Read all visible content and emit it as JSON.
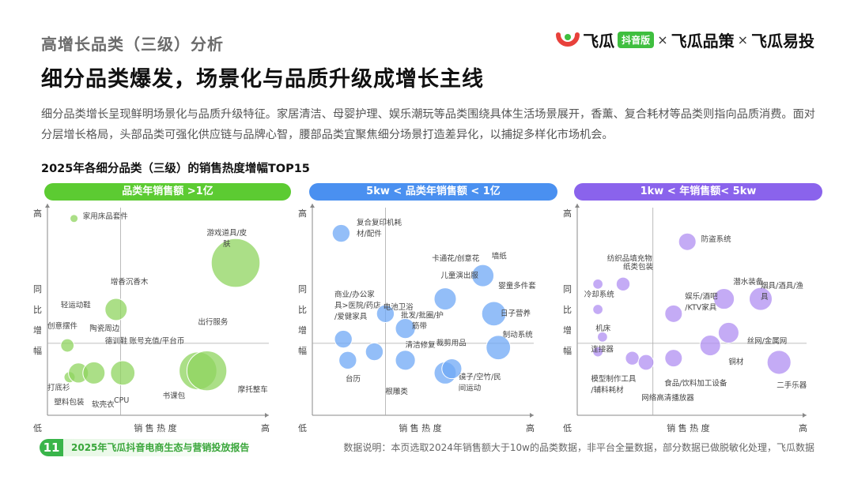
{
  "header": {
    "section_title": "高增长品类（三级）分析",
    "main_title": "细分品类爆发，场景化与品质升级成增长主线",
    "description": "细分品类增长呈现鲜明场景化与品质升级特征。家居清洁、母婴护理、娱乐潮玩等品类围绕具体生活场景展开，香薰、复合耗材等品类则指向品质消费。面对分层增长格局，头部品类可强化供应链与品牌心智，腰部品类宜聚焦细分场景打造差异化，以捕捉多样化市场机会。",
    "chart_heading": "2025年各细分品类（三级）的销售热度增幅TOP15"
  },
  "logo": {
    "brand1": "飞瓜",
    "badge": "抖音版",
    "times": "×",
    "brand2": "飞瓜品策",
    "brand3": "飞瓜易投"
  },
  "footer": {
    "page_number": "11",
    "report_title": "2025年飞瓜抖音电商生态与营销投放报告",
    "note": "数据说明：本页选取2024年销售额大于10w的品类数据，非平台全量数据，部分数据已做脱敏化处理，飞瓜数据"
  },
  "chart_data": [
    {
      "type": "scatter",
      "title": "品类年销售额 >1亿",
      "color": "#8fd45f",
      "pill_color": "#5ccb32",
      "xlabel": "销 售 热 度",
      "ylabel": "同 比 增 幅",
      "x_low": "低",
      "x_high": "高",
      "y_high": "高",
      "points": [
        {
          "label": "家用床品套件",
          "x": 0.12,
          "y": 0.93,
          "r": 0.018,
          "lx": 0.16,
          "ly": 0.93,
          "anchor": "start"
        },
        {
          "label": "游戏道具/皮",
          "label2": "肤",
          "x": 0.85,
          "y": 0.72,
          "r": 0.11,
          "lx": 0.81,
          "ly": 0.85,
          "anchor": "middle"
        },
        {
          "label": "增香沉香木",
          "x": 0.31,
          "y": 0.5,
          "r": 0.05,
          "lx": 0.37,
          "ly": 0.62,
          "anchor": "middle"
        },
        {
          "label": "轻运动鞋",
          "x": 0.08,
          "y": 0.52,
          "r": 0.0,
          "lx": 0.06,
          "ly": 0.51,
          "anchor": "start"
        },
        {
          "label": "创意摆件",
          "x": 0.09,
          "y": 0.33,
          "r": 0.03,
          "lx": 0.0,
          "ly": 0.41,
          "anchor": "start"
        },
        {
          "label": "陶瓷周边",
          "x": 0.18,
          "y": 0.3,
          "r": 0.0,
          "lx": 0.19,
          "ly": 0.4,
          "anchor": "start"
        },
        {
          "label": "德训鞋",
          "x": 0.24,
          "y": 0.27,
          "r": 0.0,
          "lx": 0.26,
          "ly": 0.34,
          "anchor": "start"
        },
        {
          "label": "账号充值/平台币",
          "x": 0.46,
          "y": 0.28,
          "r": 0.0,
          "lx": 0.37,
          "ly": 0.34,
          "anchor": "start"
        },
        {
          "label": "出行服务",
          "x": 0.63,
          "y": 0.39,
          "r": 0.0,
          "lx": 0.68,
          "ly": 0.43,
          "anchor": "start"
        },
        {
          "label": "打底衫",
          "x": 0.1,
          "y": 0.18,
          "r": 0.025,
          "lx": 0.0,
          "ly": 0.12,
          "anchor": "start"
        },
        {
          "label": "塑料包装",
          "x": 0.14,
          "y": 0.2,
          "r": 0.045,
          "lx": 0.03,
          "ly": 0.05,
          "anchor": "start"
        },
        {
          "label": "软壳衣",
          "x": 0.21,
          "y": 0.2,
          "r": 0.05,
          "lx": 0.2,
          "ly": 0.04,
          "anchor": "start"
        },
        {
          "label": "CPU",
          "x": 0.34,
          "y": 0.2,
          "r": 0.055,
          "lx": 0.3,
          "ly": 0.06,
          "anchor": "start"
        },
        {
          "label": "书课包",
          "x": 0.68,
          "y": 0.21,
          "r": 0.085,
          "lx": 0.52,
          "ly": 0.08,
          "anchor": "start"
        },
        {
          "label": "摩托整车",
          "x": 0.72,
          "y": 0.21,
          "r": 0.09,
          "lx": 0.86,
          "ly": 0.11,
          "anchor": "start"
        }
      ]
    },
    {
      "type": "scatter",
      "title": "5kw < 品类年销售额 < 1亿",
      "color": "#6fa8f5",
      "pill_color": "#4a90f0",
      "xlabel": "销 售 热 度",
      "ylabel": "同 比 增 幅",
      "x_low": "低",
      "x_high": "高",
      "y_high": "高",
      "points": [
        {
          "label": "复合复印机耗",
          "label2": "材/配件",
          "x": 0.13,
          "y": 0.86,
          "r": 0.04,
          "lx": 0.2,
          "ly": 0.9,
          "anchor": "start"
        },
        {
          "label": "卡通花/创意花",
          "x": 0.52,
          "y": 0.56,
          "r": 0.0,
          "lx": 0.54,
          "ly": 0.73,
          "anchor": "start"
        },
        {
          "label": "墙纸",
          "x": 0.77,
          "y": 0.66,
          "r": 0.05,
          "lx": 0.81,
          "ly": 0.74,
          "anchor": "start"
        },
        {
          "label": "儿童演出服",
          "x": 0.6,
          "y": 0.55,
          "r": 0.05,
          "lx": 0.58,
          "ly": 0.65,
          "anchor": "start"
        },
        {
          "label": "婴童多件套",
          "x": 0.83,
          "y": 0.58,
          "r": 0.0,
          "lx": 0.84,
          "ly": 0.6,
          "anchor": "start"
        },
        {
          "label": "商业/办公家",
          "label2": "具>医院/药店",
          "label3": "/爱健家具",
          "x": 0.16,
          "y": 0.49,
          "r": 0.0,
          "lx": 0.1,
          "ly": 0.56,
          "anchor": "start"
        },
        {
          "label": "电池卫浴",
          "x": 0.33,
          "y": 0.48,
          "r": 0.04,
          "lx": 0.32,
          "ly": 0.5,
          "anchor": "start"
        },
        {
          "label": "日子营养",
          "x": 0.82,
          "y": 0.48,
          "r": 0.055,
          "lx": 0.85,
          "ly": 0.47,
          "anchor": "start"
        },
        {
          "label": "批发/批圈/护",
          "x": 0.42,
          "y": 0.41,
          "r": 0.045,
          "lx": 0.4,
          "ly": 0.46,
          "anchor": "start"
        },
        {
          "label": "筋带",
          "x": 0.42,
          "y": 0.4,
          "r": 0.0,
          "lx": 0.45,
          "ly": 0.41,
          "anchor": "start"
        },
        {
          "label": "制动系统",
          "x": 0.84,
          "y": 0.32,
          "r": 0.055,
          "lx": 0.86,
          "ly": 0.37,
          "anchor": "start"
        },
        {
          "label": "清洁修复",
          "x": 0.42,
          "y": 0.26,
          "r": 0.045,
          "lx": 0.42,
          "ly": 0.32,
          "anchor": "start"
        },
        {
          "label": "裁剪用品",
          "x": 0.55,
          "y": 0.27,
          "r": 0.0,
          "lx": 0.56,
          "ly": 0.33,
          "anchor": "start"
        },
        {
          "label": "台历",
          "x": 0.16,
          "y": 0.26,
          "r": 0.04,
          "lx": 0.15,
          "ly": 0.16,
          "anchor": "start"
        },
        {
          "label": "",
          "x": 0.14,
          "y": 0.36,
          "r": 0.04,
          "lx": 0,
          "ly": 0,
          "anchor": "start"
        },
        {
          "label": "",
          "x": 0.28,
          "y": 0.3,
          "r": 0.04,
          "lx": 0,
          "ly": 0,
          "anchor": "start"
        },
        {
          "label": "根雕类",
          "x": 0.42,
          "y": 0.25,
          "r": 0.0,
          "lx": 0.33,
          "ly": 0.1,
          "anchor": "start"
        },
        {
          "label": "镜子/空竹/民",
          "label2": "间运动",
          "x": 0.6,
          "y": 0.2,
          "r": 0.05,
          "lx": 0.66,
          "ly": 0.17,
          "anchor": "start"
        },
        {
          "label": "",
          "x": 0.63,
          "y": 0.22,
          "r": 0.045,
          "lx": 0,
          "ly": 0,
          "anchor": "start"
        }
      ]
    },
    {
      "type": "scatter",
      "title": "1kw < 年销售额< 5kw",
      "color": "#b08ff2",
      "pill_color": "#8a63ec",
      "xlabel": "销 售 热 度",
      "ylabel": "同 比 增 幅",
      "x_low": "低",
      "x_high": "高",
      "y_high": "高",
      "points": [
        {
          "label": "防盗系统",
          "x": 0.48,
          "y": 0.82,
          "r": 0.038,
          "lx": 0.54,
          "ly": 0.82,
          "anchor": "start"
        },
        {
          "label": "纺织品填充物",
          "x": 0.2,
          "y": 0.62,
          "r": 0.0,
          "lx": 0.13,
          "ly": 0.73,
          "anchor": "start"
        },
        {
          "label": "纸类包装",
          "x": 0.2,
          "y": 0.62,
          "r": 0.03,
          "lx": 0.2,
          "ly": 0.69,
          "anchor": "start"
        },
        {
          "label": "",
          "x": 0.09,
          "y": 0.62,
          "r": 0.022,
          "lx": 0,
          "ly": 0,
          "anchor": "start"
        },
        {
          "label": "潜水装备",
          "x": 0.64,
          "y": 0.55,
          "r": 0.045,
          "lx": 0.68,
          "ly": 0.62,
          "anchor": "start"
        },
        {
          "label": "烟具/酒具/渔",
          "label2": "具",
          "x": 0.8,
          "y": 0.55,
          "r": 0.05,
          "lx": 0.8,
          "ly": 0.6,
          "anchor": "start"
        },
        {
          "label": "冷却系统",
          "x": 0.09,
          "y": 0.5,
          "r": 0.022,
          "lx": 0.03,
          "ly": 0.56,
          "anchor": "start"
        },
        {
          "label": "娱乐/酒吧",
          "label2": "/KTV家具",
          "x": 0.42,
          "y": 0.48,
          "r": 0.038,
          "lx": 0.47,
          "ly": 0.55,
          "anchor": "start"
        },
        {
          "label": "机床",
          "x": 0.1,
          "y": 0.4,
          "r": 0.0,
          "lx": 0.08,
          "ly": 0.4,
          "anchor": "start"
        },
        {
          "label": "",
          "x": 0.11,
          "y": 0.37,
          "r": 0.022,
          "lx": 0,
          "ly": 0,
          "anchor": "start"
        },
        {
          "label": "丝网/金属网",
          "x": 0.66,
          "y": 0.39,
          "r": 0.045,
          "lx": 0.74,
          "ly": 0.34,
          "anchor": "start"
        },
        {
          "label": "",
          "x": 0.58,
          "y": 0.33,
          "r": 0.045,
          "lx": 0,
          "ly": 0,
          "anchor": "start"
        },
        {
          "label": "连接器",
          "x": 0.09,
          "y": 0.3,
          "r": 0.022,
          "lx": 0.06,
          "ly": 0.3,
          "anchor": "start"
        },
        {
          "label": "铜材",
          "x": 0.66,
          "y": 0.26,
          "r": 0.0,
          "lx": 0.66,
          "ly": 0.24,
          "anchor": "start"
        },
        {
          "label": "",
          "x": 0.88,
          "y": 0.25,
          "r": 0.052,
          "lx": 0,
          "ly": 0,
          "anchor": "start"
        },
        {
          "label": "二手乐器",
          "x": 0.88,
          "y": 0.2,
          "r": 0.0,
          "lx": 0.87,
          "ly": 0.13,
          "anchor": "start"
        },
        {
          "label": "模型制作工具",
          "label2": "/辅料耗材",
          "x": 0.24,
          "y": 0.27,
          "r": 0.03,
          "lx": 0.06,
          "ly": 0.16,
          "anchor": "start"
        },
        {
          "label": "",
          "x": 0.3,
          "y": 0.25,
          "r": 0.034,
          "lx": 0,
          "ly": 0,
          "anchor": "start"
        },
        {
          "label": "",
          "x": 0.42,
          "y": 0.27,
          "r": 0.038,
          "lx": 0,
          "ly": 0,
          "anchor": "start"
        },
        {
          "label": "食品/饮料加工设备",
          "x": 0.44,
          "y": 0.15,
          "r": 0.0,
          "lx": 0.38,
          "ly": 0.14,
          "anchor": "start"
        },
        {
          "label": "网络高清播放器",
          "x": 0.3,
          "y": 0.1,
          "r": 0.0,
          "lx": 0.28,
          "ly": 0.07,
          "anchor": "start"
        }
      ]
    }
  ]
}
